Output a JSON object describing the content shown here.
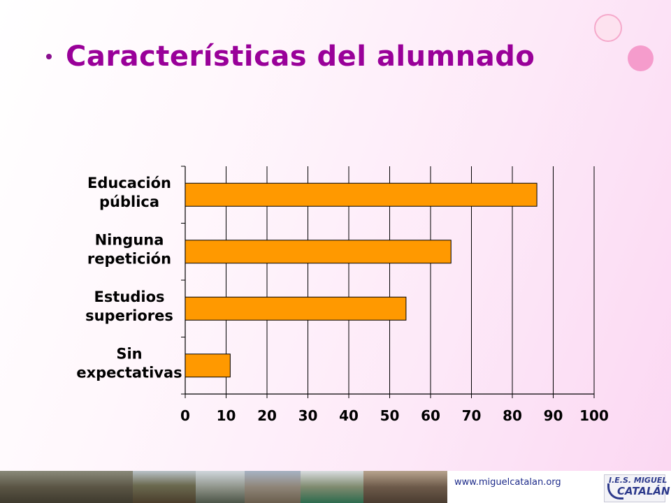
{
  "slide": {
    "title": "Características del alumnado"
  },
  "footer": {
    "url": "www.miguelcatalan.org",
    "logo_top": "I.E.S. MIGUEL",
    "logo_bottom": "CATALÁN"
  },
  "colors": {
    "title": "#990099",
    "bar_fill": "#ff9900",
    "bar_stroke": "#000000",
    "grid": "#000000"
  },
  "chart_data": {
    "type": "bar",
    "orientation": "horizontal",
    "categories": [
      [
        "Educación",
        "pública"
      ],
      [
        "Ninguna",
        "repetición"
      ],
      [
        "Estudios",
        "superiores"
      ],
      [
        "Sin",
        "expectativas"
      ]
    ],
    "values": [
      86,
      65,
      54,
      11
    ],
    "xlim": [
      0,
      100
    ],
    "xticks": [
      0,
      10,
      20,
      30,
      40,
      50,
      60,
      70,
      80,
      90,
      100
    ],
    "grid": true,
    "legend": "none"
  }
}
